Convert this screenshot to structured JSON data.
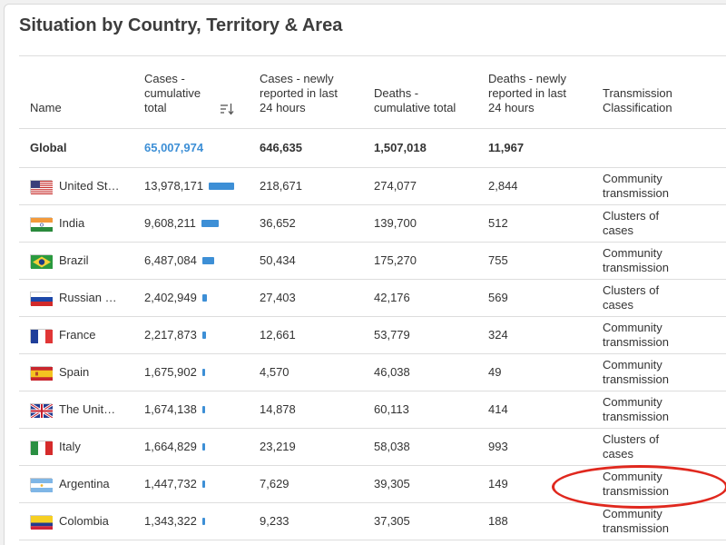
{
  "title": "Situation by Country, Territory & Area",
  "headers": {
    "name": "Name",
    "cases": [
      "Cases -",
      "cumulative",
      "total"
    ],
    "cases_new": [
      "Cases - newly",
      "reported in last",
      "24 hours"
    ],
    "deaths": [
      "Deaths -",
      "cumulative total"
    ],
    "deaths_new": [
      "Deaths - newly",
      "reported in last",
      "24 hours"
    ],
    "transmission": [
      "Transmission",
      "Classification"
    ]
  },
  "global": {
    "name": "Global",
    "cases": "65,007,974",
    "cases_new": "646,635",
    "deaths": "1,507,018",
    "deaths_new": "11,967"
  },
  "rows": [
    {
      "name": "United St…",
      "cases": "13,978,171",
      "cases_value": 13978171,
      "cases_new": "218,671",
      "deaths": "274,077",
      "deaths_new": "2,844",
      "trans": [
        "Community",
        "transmission"
      ]
    },
    {
      "name": "India",
      "cases": "9,608,211",
      "cases_value": 9608211,
      "cases_new": "36,652",
      "deaths": "139,700",
      "deaths_new": "512",
      "trans": [
        "Clusters of",
        "cases"
      ]
    },
    {
      "name": "Brazil",
      "cases": "6,487,084",
      "cases_value": 6487084,
      "cases_new": "50,434",
      "deaths": "175,270",
      "deaths_new": "755",
      "trans": [
        "Community",
        "transmission"
      ]
    },
    {
      "name": "Russian …",
      "cases": "2,402,949",
      "cases_value": 2402949,
      "cases_new": "27,403",
      "deaths": "42,176",
      "deaths_new": "569",
      "trans": [
        "Clusters of",
        "cases"
      ]
    },
    {
      "name": "France",
      "cases": "2,217,873",
      "cases_value": 2217873,
      "cases_new": "12,661",
      "deaths": "53,779",
      "deaths_new": "324",
      "trans": [
        "Community",
        "transmission"
      ]
    },
    {
      "name": "Spain",
      "cases": "1,675,902",
      "cases_value": 1675902,
      "cases_new": "4,570",
      "deaths": "46,038",
      "deaths_new": "49",
      "trans": [
        "Community",
        "transmission"
      ]
    },
    {
      "name": "The Unit…",
      "cases": "1,674,138",
      "cases_value": 1674138,
      "cases_new": "14,878",
      "deaths": "60,113",
      "deaths_new": "414",
      "trans": [
        "Community",
        "transmission"
      ]
    },
    {
      "name": "Italy",
      "cases": "1,664,829",
      "cases_value": 1664829,
      "cases_new": "23,219",
      "deaths": "58,038",
      "deaths_new": "993",
      "trans": [
        "Clusters of",
        "cases"
      ]
    },
    {
      "name": "Argentina",
      "cases": "1,447,732",
      "cases_value": 1447732,
      "cases_new": "7,629",
      "deaths": "39,305",
      "deaths_new": "149",
      "trans": [
        "Community",
        "transmission"
      ]
    },
    {
      "name": "Colombia",
      "cases": "1,343,322",
      "cases_value": 1343322,
      "cases_new": "9,233",
      "deaths": "37,305",
      "deaths_new": "188",
      "trans": [
        "Community",
        "transmission"
      ]
    }
  ],
  "flags": [
    "us-flag",
    "india-flag",
    "brazil-flag",
    "russia-flag",
    "france-flag",
    "spain-flag",
    "uk-flag",
    "italy-flag",
    "argentina-flag",
    "colombia-flag"
  ],
  "colors": {
    "accent": "#3d8fd6",
    "annotation": "#e0281e"
  }
}
